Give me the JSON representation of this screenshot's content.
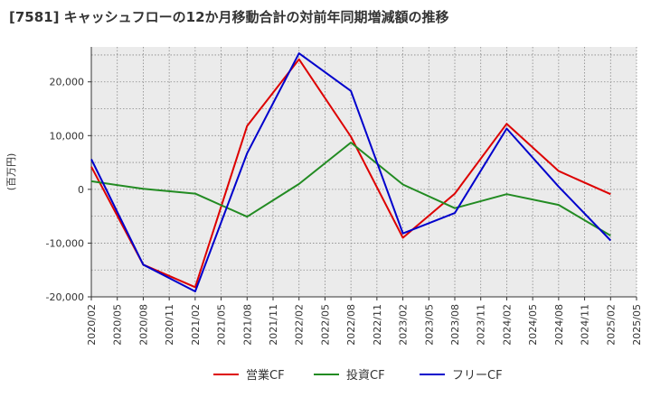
{
  "chart_data": {
    "type": "line",
    "title": "[7581]  キャッシュフローの12か月移動合計の対前年同期増減額の推移",
    "ylabel": "(百万円)",
    "xlabel": "",
    "ylim": [
      -20000,
      26500
    ],
    "yticks": [
      20000,
      10000,
      0,
      -10000,
      -20000
    ],
    "ytick_labels": [
      "20,000",
      "10,000",
      "0",
      "-10,000",
      "-20,000"
    ],
    "xtick_labels": [
      "2020/02",
      "2020/05",
      "2020/08",
      "2020/11",
      "2021/02",
      "2021/05",
      "2021/08",
      "2021/11",
      "2022/02",
      "2022/05",
      "2022/08",
      "2022/11",
      "2023/02",
      "2023/05",
      "2023/08",
      "2023/11",
      "2024/02",
      "2024/05",
      "2024/08",
      "2024/11",
      "2025/02",
      "2025/05"
    ],
    "x": [
      "2020/02",
      "2020/08",
      "2021/02",
      "2021/08",
      "2022/02",
      "2022/08",
      "2023/02",
      "2023/08",
      "2024/02",
      "2024/08",
      "2025/02"
    ],
    "grid": true,
    "legend_position": "bottom",
    "series": [
      {
        "name": "営業CF",
        "color": "#dd0000",
        "values": [
          4200,
          -14000,
          -18200,
          11800,
          24200,
          9800,
          -9000,
          -800,
          12200,
          3400,
          -900
        ]
      },
      {
        "name": "投資CF",
        "color": "#228b22",
        "values": [
          1500,
          100,
          -800,
          -5100,
          1000,
          8700,
          900,
          -3500,
          -900,
          -2900,
          -8600
        ]
      },
      {
        "name": "フリーCF",
        "color": "#0000cc",
        "values": [
          5600,
          -14000,
          -19000,
          6700,
          25300,
          18300,
          -8200,
          -4400,
          11300,
          500,
          -9500
        ]
      }
    ]
  }
}
